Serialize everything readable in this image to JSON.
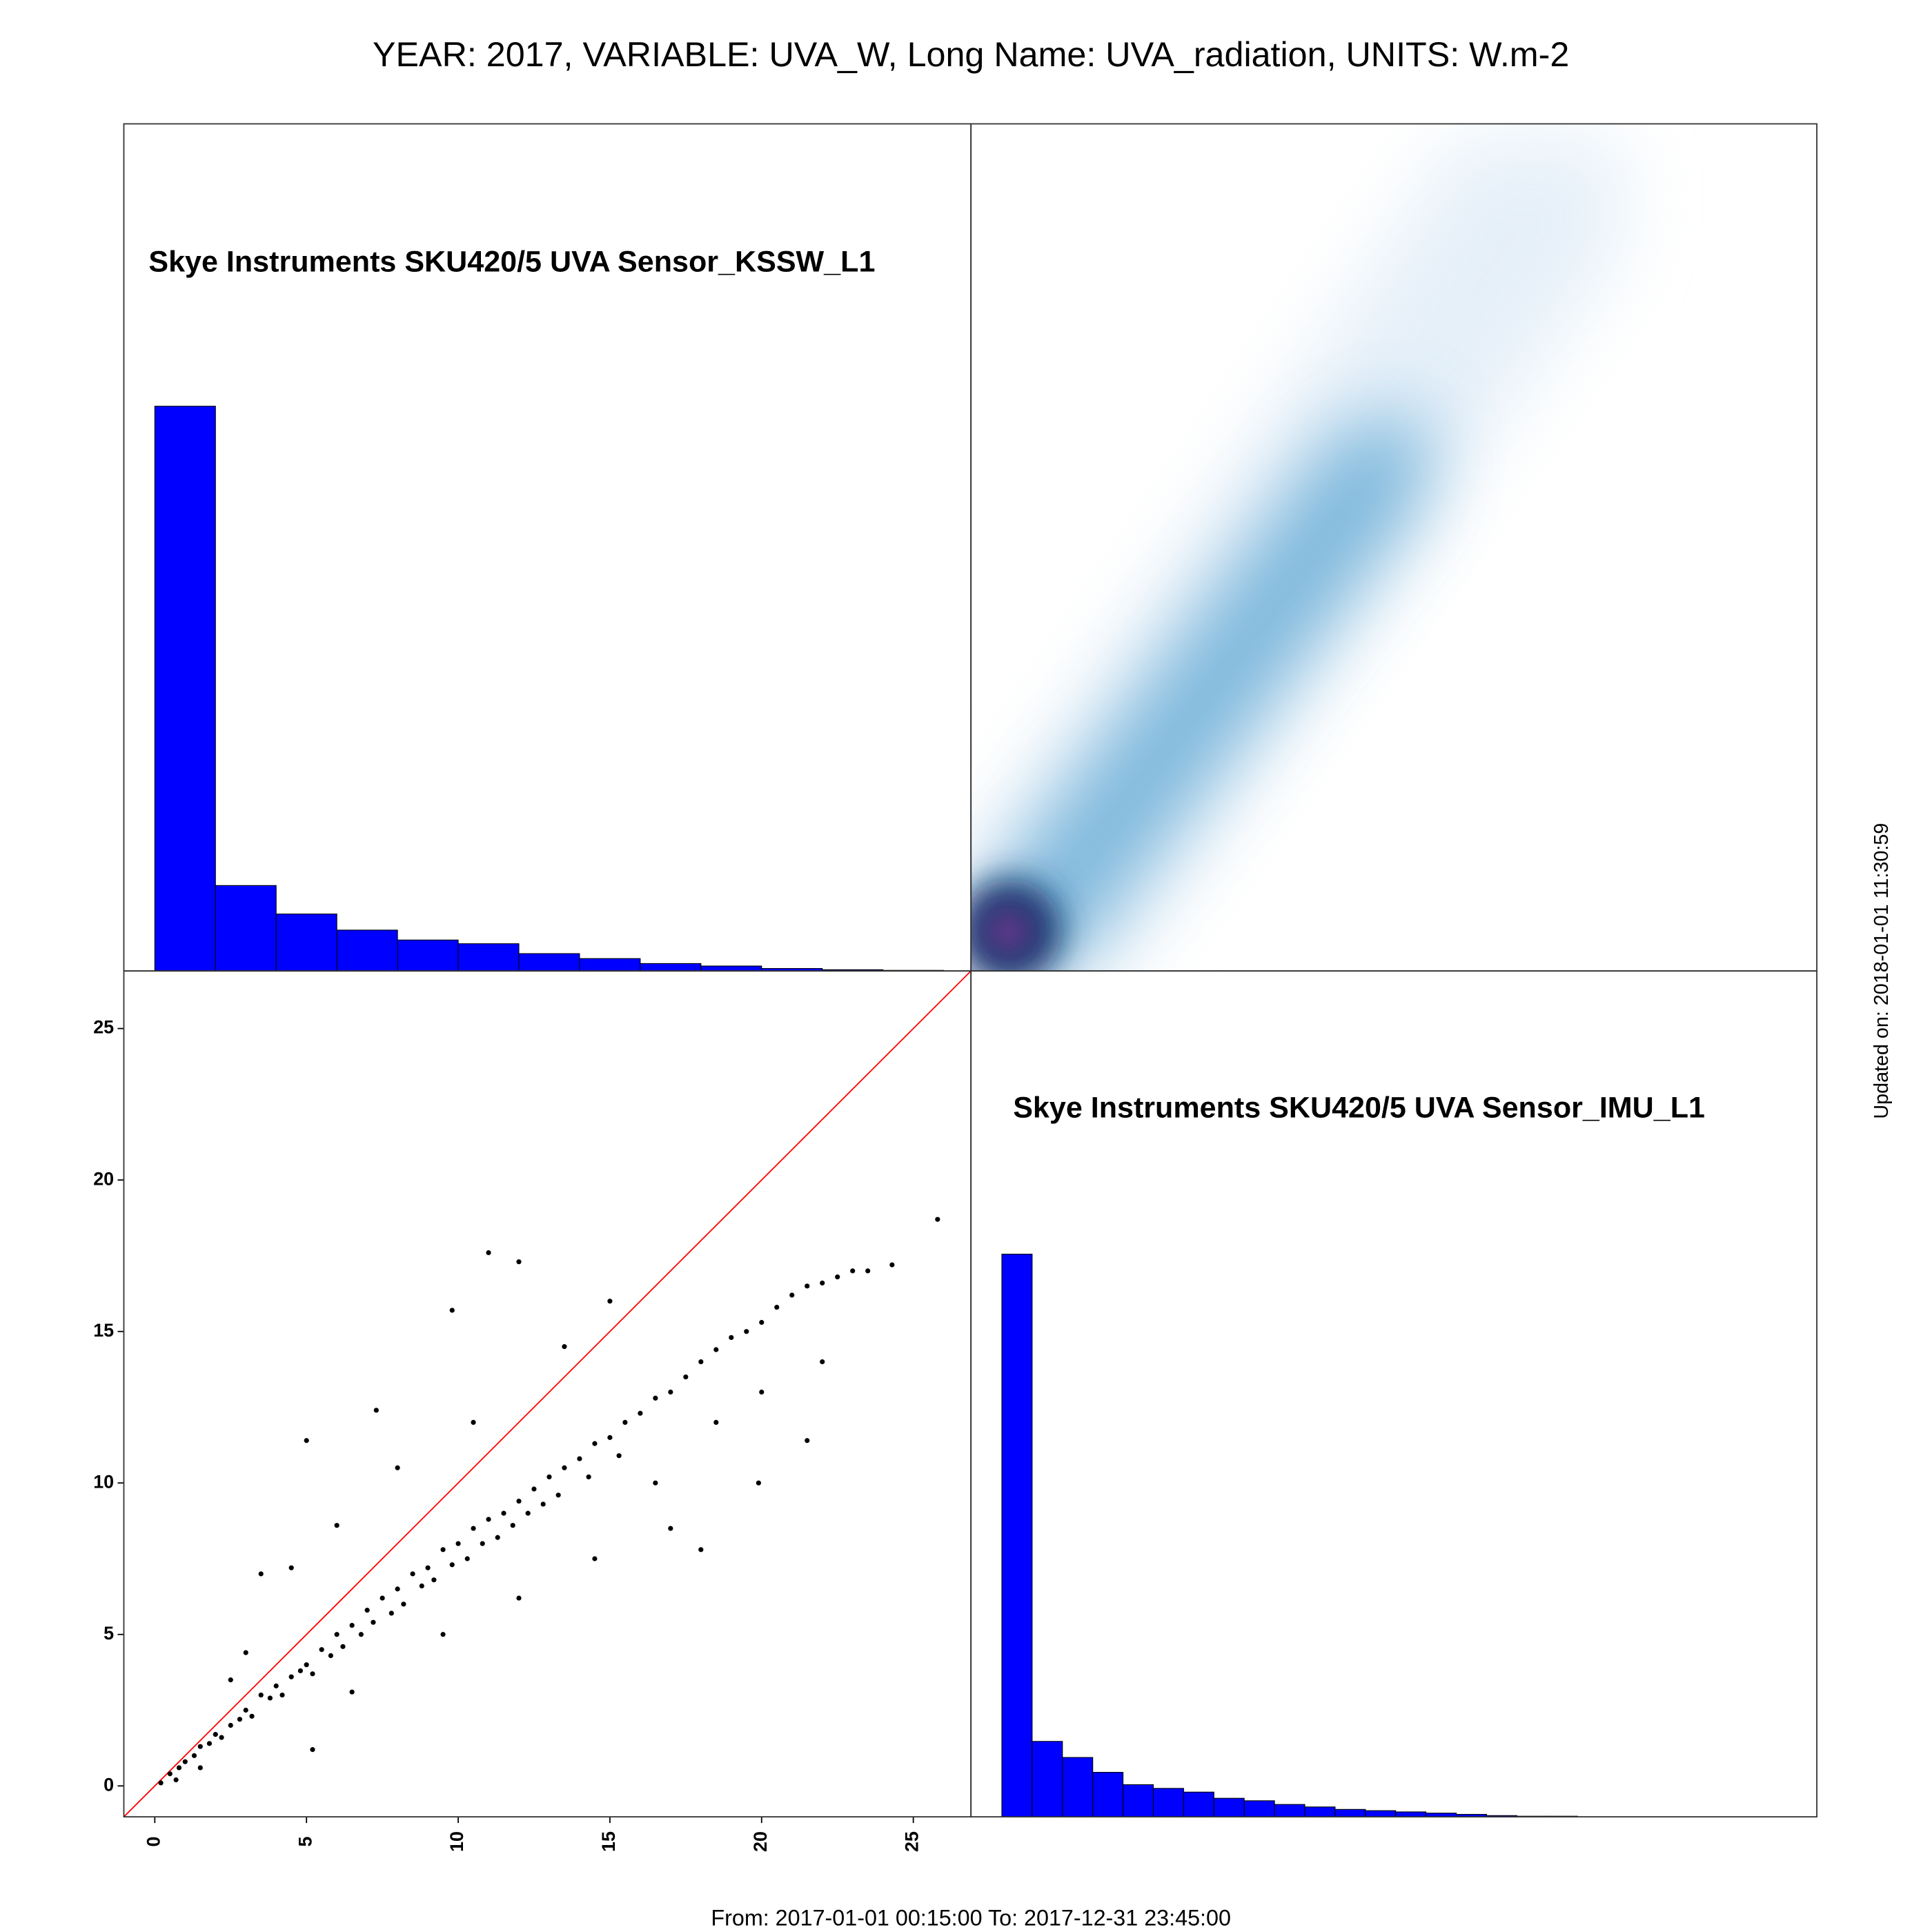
{
  "title": "YEAR: 2017, VARIABLE: UVA_W, Long Name: UVA_radiation, UNITS: W.m-2",
  "footer": "From: 2017-01-01 00:15:00 To: 2017-12-31 23:45:00",
  "updated": "Updated on: 2018-01-01 11:30:59",
  "chart_data": [
    {
      "type": "histogram",
      "title": "Skye Instruments SKU420/5 UVA Sensor_KSSW_L1",
      "bins": [
        0,
        2,
        4,
        6,
        8,
        10,
        12,
        14,
        16,
        18,
        20,
        22,
        24,
        26
      ],
      "values": [
        456,
        69,
        46,
        33,
        25,
        22,
        14,
        10,
        6,
        4,
        2,
        1,
        0.5
      ],
      "color": "#0000ff",
      "xlim": [
        -1.02,
        26.9
      ],
      "ylim": [
        0,
        684
      ]
    },
    {
      "type": "scatter",
      "color": "#000000",
      "line_color": "#ff0000",
      "xlim": [
        -1.02,
        26.9
      ],
      "ylim": [
        -1.02,
        26.9
      ],
      "xticks": [
        0,
        5,
        10,
        15,
        20,
        25
      ],
      "yticks": [
        0,
        5,
        10,
        15,
        20,
        25
      ],
      "x": [
        0.2,
        0.5,
        0.8,
        1.0,
        1.3,
        1.5,
        1.8,
        2.0,
        2.2,
        2.5,
        2.8,
        3.0,
        3.2,
        3.5,
        3.8,
        4.0,
        4.2,
        4.5,
        4.8,
        5.0,
        5.2,
        5.5,
        5.8,
        6.0,
        6.2,
        6.5,
        6.8,
        7.0,
        7.2,
        7.5,
        7.8,
        8.0,
        8.2,
        8.5,
        8.8,
        9.0,
        9.2,
        9.5,
        9.8,
        10.0,
        10.3,
        10.5,
        10.8,
        11.0,
        11.3,
        11.5,
        11.8,
        12.0,
        12.3,
        12.5,
        12.8,
        13.0,
        13.3,
        13.5,
        14.0,
        14.3,
        14.5,
        15.0,
        15.3,
        15.5,
        16.0,
        16.5,
        17.0,
        17.5,
        18.0,
        18.5,
        19.0,
        19.5,
        20.0,
        20.5,
        21.0,
        21.5,
        22.0,
        22.5,
        23.0,
        23.5,
        24.3,
        25.8,
        5.0,
        11.0,
        21.5,
        19.9,
        18.0,
        9.8,
        7.3,
        12.0,
        15.0,
        3.5,
        4.5,
        3.0,
        6.5,
        5.2,
        8.0,
        10.5,
        13.5,
        16.5,
        17.0,
        14.5,
        12.0,
        9.5,
        20.0,
        18.5,
        22.0,
        6.0,
        2.5,
        1.5,
        0.7
      ],
      "values": [
        0.1,
        0.4,
        0.6,
        0.8,
        1.0,
        1.3,
        1.4,
        1.7,
        1.6,
        2.0,
        2.2,
        2.5,
        2.3,
        3.0,
        2.9,
        3.3,
        3.0,
        3.6,
        3.8,
        4.0,
        3.7,
        4.5,
        4.3,
        5.0,
        4.6,
        5.3,
        5.0,
        5.8,
        5.4,
        6.2,
        5.7,
        6.5,
        6.0,
        7.0,
        6.6,
        7.2,
        6.8,
        7.8,
        7.3,
        8.0,
        7.5,
        8.5,
        8.0,
        8.8,
        8.2,
        9.0,
        8.6,
        9.4,
        9.0,
        9.8,
        9.3,
        10.2,
        9.6,
        10.5,
        10.8,
        10.2,
        11.3,
        11.5,
        10.9,
        12.0,
        12.3,
        12.8,
        13.0,
        13.5,
        14.0,
        14.4,
        14.8,
        15.0,
        15.3,
        15.8,
        16.2,
        16.5,
        16.6,
        16.8,
        17.0,
        17.0,
        17.2,
        18.7,
        11.4,
        17.6,
        11.4,
        10.0,
        7.8,
        15.7,
        12.4,
        17.3,
        16.0,
        7.0,
        7.2,
        4.4,
        3.1,
        1.2,
        10.5,
        12.0,
        14.5,
        10.0,
        8.5,
        7.5,
        6.2,
        5.0,
        13.0,
        12.0,
        14.0,
        8.6,
        3.5,
        0.6,
        0.2
      ]
    },
    {
      "type": "histogram",
      "title": "Skye Instruments SKU420/5 UVA Sensor_IMU_L1",
      "bins": [
        0,
        1,
        2,
        3,
        4,
        5,
        6,
        7,
        8,
        9,
        10,
        11,
        12,
        13,
        14,
        15,
        16,
        17,
        18,
        19
      ],
      "values": [
        455,
        61,
        48,
        36,
        26,
        23,
        20,
        15,
        13,
        10,
        8,
        6,
        5,
        4,
        3,
        2,
        1,
        0.5,
        0.5
      ],
      "color": "#0000ff",
      "xlim": [
        -1.02,
        26.9
      ],
      "ylim": [
        0,
        684
      ]
    }
  ]
}
